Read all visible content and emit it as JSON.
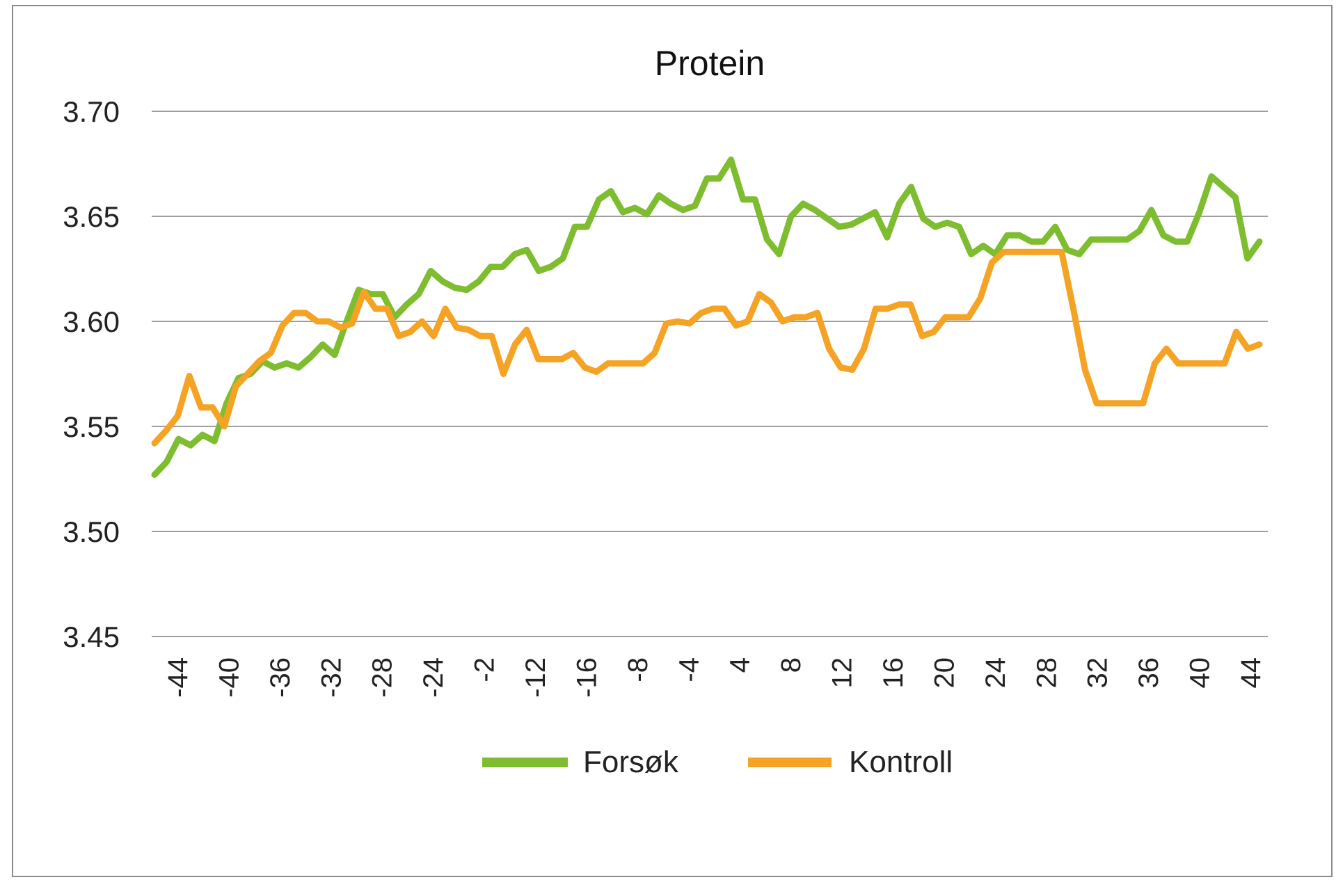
{
  "chart_data": {
    "type": "line",
    "title": "Protein",
    "xlabel": "",
    "ylabel": "",
    "ylim": [
      3.45,
      3.7
    ],
    "y_ticks": [
      "3.45",
      "3.50",
      "3.55",
      "3.60",
      "3.65",
      "3.70"
    ],
    "x_tick_labels": [
      "-44",
      "-40",
      "-36",
      "-32",
      "-28",
      "-24",
      "-2",
      "-12",
      "-16",
      "-8",
      "-4",
      "4",
      "8",
      "12",
      "16",
      "20",
      "24",
      "28",
      "32",
      "36",
      "40",
      "44"
    ],
    "grid": "horizontal",
    "legend": "bottom",
    "series": [
      {
        "name": "Forsøk",
        "color": "#7dbd2f",
        "values": [
          3.527,
          3.533,
          3.544,
          3.541,
          3.546,
          3.543,
          3.561,
          3.573,
          3.575,
          3.581,
          3.578,
          3.58,
          3.578,
          3.583,
          3.589,
          3.584,
          3.6,
          3.615,
          3.613,
          3.613,
          3.602,
          3.608,
          3.613,
          3.624,
          3.619,
          3.616,
          3.615,
          3.619,
          3.626,
          3.626,
          3.632,
          3.634,
          3.624,
          3.626,
          3.63,
          3.645,
          3.645,
          3.658,
          3.662,
          3.652,
          3.654,
          3.651,
          3.66,
          3.656,
          3.653,
          3.655,
          3.668,
          3.668,
          3.677,
          3.658,
          3.658,
          3.639,
          3.632,
          3.65,
          3.656,
          3.653,
          3.649,
          3.645,
          3.646,
          3.649,
          3.652,
          3.64,
          3.656,
          3.664,
          3.649,
          3.645,
          3.647,
          3.645,
          3.632,
          3.636,
          3.632,
          3.641,
          3.641,
          3.638,
          3.638,
          3.645,
          3.634,
          3.632,
          3.639,
          3.639,
          3.639,
          3.639,
          3.643,
          3.653,
          3.641,
          3.638,
          3.638,
          3.652,
          3.669,
          3.664,
          3.659,
          3.63,
          3.638
        ]
      },
      {
        "name": "Kontroll",
        "color": "#f4a324",
        "values": [
          3.542,
          3.548,
          3.555,
          3.574,
          3.559,
          3.559,
          3.55,
          3.569,
          3.575,
          3.581,
          3.585,
          3.598,
          3.604,
          3.604,
          3.6,
          3.6,
          3.597,
          3.599,
          3.614,
          3.606,
          3.606,
          3.593,
          3.595,
          3.6,
          3.593,
          3.606,
          3.597,
          3.596,
          3.593,
          3.593,
          3.575,
          3.589,
          3.596,
          3.582,
          3.582,
          3.582,
          3.585,
          3.578,
          3.576,
          3.58,
          3.58,
          3.58,
          3.58,
          3.585,
          3.599,
          3.6,
          3.599,
          3.604,
          3.606,
          3.606,
          3.598,
          3.6,
          3.613,
          3.609,
          3.6,
          3.602,
          3.602,
          3.604,
          3.587,
          3.578,
          3.577,
          3.587,
          3.606,
          3.606,
          3.608,
          3.608,
          3.593,
          3.595,
          3.602,
          3.602,
          3.602,
          3.611,
          3.628,
          3.633,
          3.633,
          3.633,
          3.633,
          3.633,
          3.633,
          3.606,
          3.577,
          3.561,
          3.561,
          3.561,
          3.561,
          3.561,
          3.58,
          3.587,
          3.58,
          3.58,
          3.58,
          3.58,
          3.58,
          3.595,
          3.587,
          3.589
        ]
      }
    ]
  }
}
